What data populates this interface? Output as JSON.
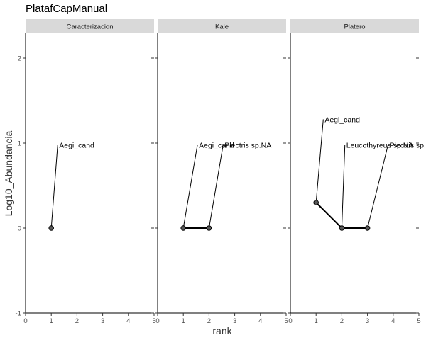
{
  "chart_data": {
    "type": "scatter",
    "title": "PlatafCapManual",
    "xlabel": "rank",
    "ylabel": "Log10_Abundancia",
    "xlim": [
      0,
      5
    ],
    "ylim": [
      -1,
      2.3
    ],
    "x_ticks": [
      "0",
      "1",
      "2",
      "3",
      "4",
      "5"
    ],
    "y_ticks": [
      "-1",
      "0",
      "1",
      "2"
    ],
    "grid": false,
    "panels": [
      {
        "name": "Caracterizacion",
        "points": [
          {
            "x": 1,
            "y": 0,
            "label": "Aegi_cand",
            "label_x": 1.25,
            "label_y": 0.98
          }
        ]
      },
      {
        "name": "Kale",
        "points": [
          {
            "x": 1,
            "y": 0,
            "label": "Aegi_cand",
            "label_x": 1.55,
            "label_y": 0.98
          },
          {
            "x": 2,
            "y": 0,
            "label": "Plectris sp.NA",
            "label_x": 2.55,
            "label_y": 0.98
          }
        ]
      },
      {
        "name": "Platero",
        "points": [
          {
            "x": 1,
            "y": 0.3,
            "label": "Aegi_cand",
            "label_x": 1.28,
            "label_y": 1.28
          },
          {
            "x": 2,
            "y": 0,
            "label": "Leucothyreus sp.NA",
            "label_x": 2.12,
            "label_y": 0.98
          },
          {
            "x": 3,
            "y": 0,
            "label": "Plectris sp.NA",
            "label_x": 3.8,
            "label_y": 0.98
          }
        ]
      }
    ]
  }
}
